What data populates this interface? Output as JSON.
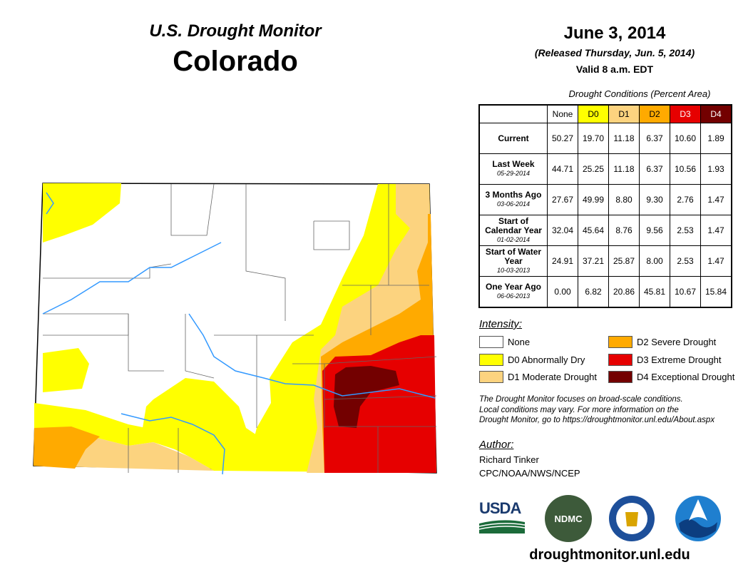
{
  "header": {
    "series_title": "U.S. Drought Monitor",
    "state": "Colorado"
  },
  "release": {
    "date": "June 3, 2014",
    "released": "(Released Thursday, Jun. 5, 2014)",
    "valid": "Valid 8 a.m. EDT"
  },
  "table": {
    "caption": "Drought Conditions (Percent Area)",
    "columns": [
      {
        "label": "None",
        "color": "#ffffff",
        "text": "#000000"
      },
      {
        "label": "D0",
        "color": "#ffff00",
        "text": "#000000"
      },
      {
        "label": "D1",
        "color": "#fcd37f",
        "text": "#000000"
      },
      {
        "label": "D2",
        "color": "#ffaa00",
        "text": "#000000"
      },
      {
        "label": "D3",
        "color": "#e60000",
        "text": "#ffffff"
      },
      {
        "label": "D4",
        "color": "#730000",
        "text": "#ffffff"
      }
    ],
    "rows": [
      {
        "label": "Current",
        "date": "",
        "values": [
          "50.27",
          "19.70",
          "11.18",
          "6.37",
          "10.60",
          "1.89"
        ]
      },
      {
        "label": "Last Week",
        "date": "05-29-2014",
        "values": [
          "44.71",
          "25.25",
          "11.18",
          "6.37",
          "10.56",
          "1.93"
        ]
      },
      {
        "label": "3 Months Ago",
        "date": "03-06-2014",
        "values": [
          "27.67",
          "49.99",
          "8.80",
          "9.30",
          "2.76",
          "1.47"
        ]
      },
      {
        "label": "Start of Calendar Year",
        "date": "01-02-2014",
        "values": [
          "32.04",
          "45.64",
          "8.76",
          "9.56",
          "2.53",
          "1.47"
        ]
      },
      {
        "label": "Start of Water Year",
        "date": "10-03-2013",
        "values": [
          "24.91",
          "37.21",
          "25.87",
          "8.00",
          "2.53",
          "1.47"
        ]
      },
      {
        "label": "One Year Ago",
        "date": "06-06-2013",
        "values": [
          "0.00",
          "6.82",
          "20.86",
          "45.81",
          "10.67",
          "15.84"
        ]
      }
    ]
  },
  "legend": {
    "title": "Intensity:",
    "items": [
      {
        "label": "None",
        "color": "#ffffff"
      },
      {
        "label": "D0 Abnormally Dry",
        "color": "#ffff00"
      },
      {
        "label": "D1 Moderate Drought",
        "color": "#fcd37f"
      },
      {
        "label": "D2 Severe Drought",
        "color": "#ffaa00"
      },
      {
        "label": "D3 Extreme Drought",
        "color": "#e60000"
      },
      {
        "label": "D4 Exceptional Drought",
        "color": "#730000"
      }
    ]
  },
  "note": [
    "The Drought Monitor focuses on broad-scale conditions.",
    "Local conditions may vary. For more information on the",
    "Drought Monitor, go to https://droughtmonitor.unl.edu/About.aspx"
  ],
  "author": {
    "label": "Author:",
    "name": "Richard Tinker",
    "org": "CPC/NOAA/NWS/NCEP"
  },
  "logos": {
    "usda": "USDA",
    "ndmc": "NDMC",
    "noaa": "NOAA"
  },
  "footer": {
    "url": "droughtmonitor.unl.edu"
  },
  "colors": {
    "river": "#3399ff",
    "county": "#666666"
  }
}
